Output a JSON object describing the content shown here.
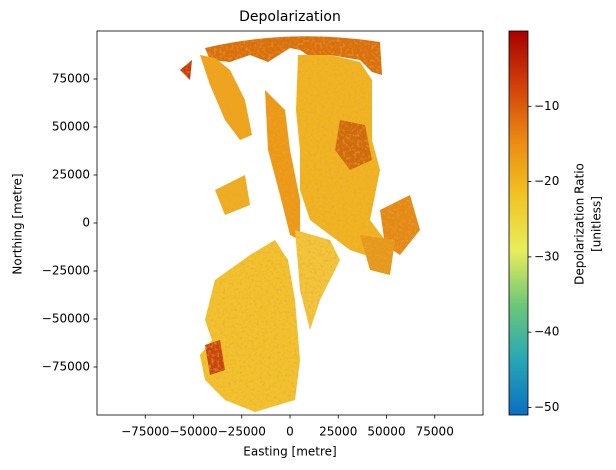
{
  "chart_data": {
    "type": "image",
    "title": "Depolarization",
    "x_label": "Easting [metre]",
    "y_label": "Northing [metre]",
    "xlim": [
      -100000,
      100000
    ],
    "ylim": [
      -100000,
      100000
    ],
    "xticks": [
      {
        "value": -75000,
        "label": "−75000"
      },
      {
        "value": -50000,
        "label": "−50000"
      },
      {
        "value": -25000,
        "label": "−25000"
      },
      0,
      25000,
      50000,
      75000
    ],
    "yticks": [
      {
        "value": -75000,
        "label": "−75000"
      },
      {
        "value": -50000,
        "label": "−50000"
      },
      {
        "value": -25000,
        "label": "−25000"
      },
      0,
      25000,
      50000,
      75000
    ],
    "colorbar_label": [
      "Depolarization Ratio",
      "[unitless]"
    ],
    "clim": [
      -51,
      0
    ],
    "cticks": [
      {
        "value": -50,
        "label": "−50"
      },
      {
        "value": -40,
        "label": "−40"
      },
      {
        "value": -30,
        "label": "−30"
      },
      {
        "value": -20,
        "label": "−20"
      },
      {
        "value": -10,
        "label": "−10"
      }
    ],
    "colormap": [
      "#0a6fc4",
      "#27a6b5",
      "#6cc777",
      "#e8ee5a",
      "#f2c322",
      "#eb8a12",
      "#d2400b",
      "#a80000"
    ]
  }
}
